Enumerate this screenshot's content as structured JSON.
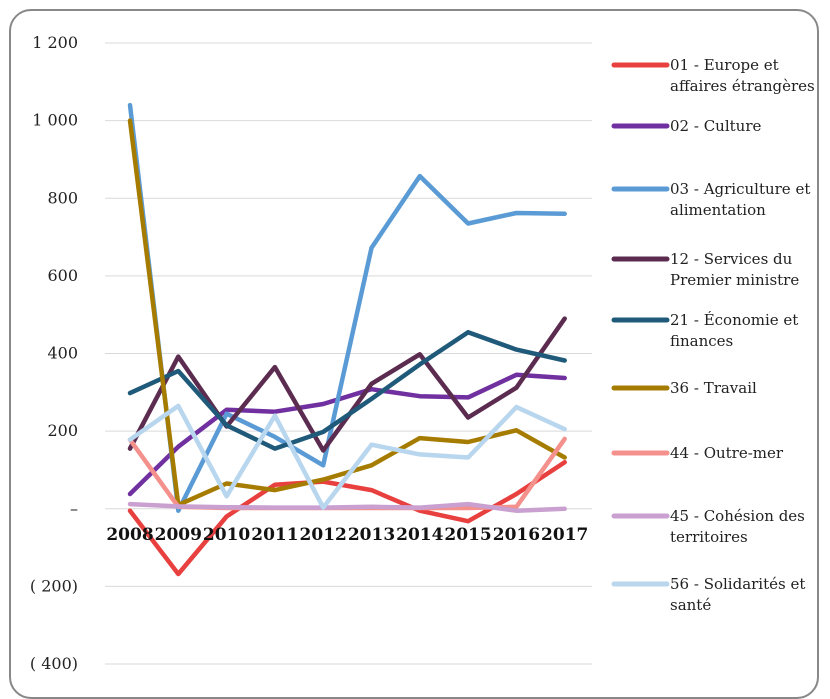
{
  "chart_data": {
    "type": "line",
    "x": [
      2008,
      2009,
      2010,
      2011,
      2012,
      2013,
      2014,
      2015,
      2016,
      2017
    ],
    "x_tick_labels": [
      "2008",
      "2009",
      "2010",
      "2011",
      "2012",
      "2013",
      "2014",
      "2015",
      "2016",
      "2017"
    ],
    "ylim": [
      -400,
      1200
    ],
    "y_ticks": [
      1200,
      1000,
      800,
      600,
      400,
      200,
      0,
      -200,
      -400
    ],
    "y_tick_labels": [
      "1 200",
      "1 000",
      "800",
      "600",
      "400",
      "200",
      "–",
      "( 200)",
      "( 400)"
    ],
    "grid": true,
    "legend_position": "right",
    "title": "",
    "xlabel": "",
    "ylabel": "",
    "series": [
      {
        "name": "01 - Europe et affaires étrangères",
        "legend_lines": [
          "01 - Europe et",
          "affaires étrangères"
        ],
        "color": "#e8403f",
        "values": [
          -5,
          -168,
          -20,
          62,
          70,
          48,
          -5,
          -32,
          38,
          120
        ]
      },
      {
        "name": "02 - Culture",
        "legend_lines": [
          "02 - Culture"
        ],
        "color": "#7030a0",
        "values": [
          38,
          160,
          255,
          250,
          270,
          308,
          290,
          287,
          345,
          337
        ]
      },
      {
        "name": "03 - Agriculture et alimentation",
        "legend_lines": [
          "03 - Agriculture et",
          "alimentation"
        ],
        "color": "#5b9bd5",
        "values": [
          1040,
          -5,
          245,
          185,
          112,
          672,
          857,
          735,
          762,
          760
        ]
      },
      {
        "name": "12 - Services du Premier ministre",
        "legend_lines": [
          "12 - Services du",
          "Premier ministre"
        ],
        "color": "#5b2c4f",
        "values": [
          155,
          392,
          212,
          365,
          150,
          322,
          398,
          235,
          312,
          490
        ]
      },
      {
        "name": "21 - Économie et finances",
        "legend_lines": [
          "21 - Économie et",
          "finances"
        ],
        "color": "#1f5a7a",
        "values": [
          298,
          355,
          215,
          155,
          198,
          283,
          372,
          455,
          410,
          382
        ]
      },
      {
        "name": "36 - Travail",
        "legend_lines": [
          "36 - Travail"
        ],
        "color": "#a67c00",
        "values": [
          1000,
          10,
          65,
          48,
          75,
          112,
          182,
          172,
          202,
          132
        ]
      },
      {
        "name": "44 - Outre-mer",
        "legend_lines": [
          "44 - Outre-mer"
        ],
        "color": "#f4918c",
        "values": [
          178,
          5,
          2,
          2,
          2,
          2,
          2,
          2,
          5,
          180
        ]
      },
      {
        "name": "45 - Cohésion des territoires",
        "legend_lines": [
          "45 - Cohésion des",
          "territoires"
        ],
        "color": "#c9a0d0",
        "values": [
          12,
          6,
          4,
          3,
          3,
          5,
          3,
          12,
          -5,
          0
        ]
      },
      {
        "name": "56 - Solidarités et santé",
        "legend_lines": [
          "56 - Solidarités et",
          "santé"
        ],
        "color": "#b8d6ee",
        "values": [
          178,
          265,
          32,
          240,
          3,
          165,
          140,
          132,
          262,
          205
        ]
      }
    ]
  }
}
